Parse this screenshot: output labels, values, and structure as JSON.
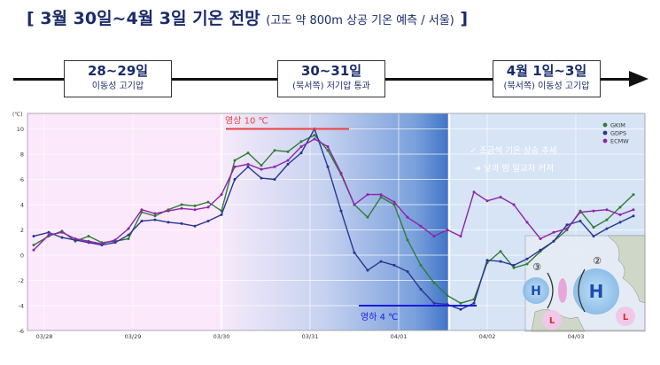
{
  "title": {
    "bracket_open": "[",
    "main": "3월 30일~4월 3일 기온 전망",
    "sub": "(고도 약 800m 상공 기온 예측 / 서울)",
    "bracket_close": "]"
  },
  "periods": [
    {
      "range": "28~29일",
      "desc": "이동성 고기압"
    },
    {
      "range": "30~31일",
      "desc": "(북서쪽) 저기압 통과"
    },
    {
      "range": "4월 1일~3일",
      "desc": "(북서쪽) 이동성 고기압"
    }
  ],
  "annotations": {
    "max_label": "영상 10 ℃",
    "min_label": "영하 4 ℃",
    "note1": "✓ 조금씩 기온 상승 추세",
    "note2": "➔ 낮과 밤 일교차 커져",
    "map_marks": [
      "③",
      "②",
      "H",
      "H",
      "L",
      "L"
    ]
  },
  "colors": {
    "GKIM": "#2e7d32",
    "GDPS": "#283593",
    "ECMW": "#8e24aa",
    "max_line": "#f04040",
    "min_line": "#1a1ae0"
  },
  "chart_data": {
    "type": "line",
    "ylabel": "(℃)",
    "ylim": [
      -6,
      11
    ],
    "yticks": [
      10,
      8,
      6,
      4,
      2,
      0,
      -2,
      -4,
      -6
    ],
    "xlim": [
      0,
      6.7
    ],
    "x_ticks": [
      {
        "x": 0,
        "label": "03/28"
      },
      {
        "x": 1,
        "label": "03/29"
      },
      {
        "x": 2,
        "label": "03/30"
      },
      {
        "x": 3,
        "label": "03/31"
      },
      {
        "x": 4,
        "label": "04/01"
      },
      {
        "x": 5,
        "label": "04/02"
      },
      {
        "x": 6,
        "label": "04/03"
      }
    ],
    "legend": [
      "GKIM",
      "GDPS",
      "ECMW"
    ],
    "legend_position": "top-right",
    "max_ref": 10,
    "min_ref": -4,
    "series": [
      {
        "name": "GKIM",
        "points": [
          [
            -0.12,
            0.8
          ],
          [
            0.05,
            1.5
          ],
          [
            0.2,
            1.9
          ],
          [
            0.35,
            1.1
          ],
          [
            0.5,
            1.5
          ],
          [
            0.65,
            1.0
          ],
          [
            0.8,
            1.1
          ],
          [
            0.95,
            1.3
          ],
          [
            1.1,
            3.4
          ],
          [
            1.25,
            3.1
          ],
          [
            1.4,
            3.6
          ],
          [
            1.55,
            4.0
          ],
          [
            1.7,
            3.9
          ],
          [
            1.85,
            4.2
          ],
          [
            2.0,
            3.5
          ],
          [
            2.15,
            7.5
          ],
          [
            2.3,
            8.1
          ],
          [
            2.45,
            7.1
          ],
          [
            2.6,
            8.3
          ],
          [
            2.75,
            8.2
          ],
          [
            2.9,
            9.0
          ],
          [
            3.05,
            9.5
          ],
          [
            3.2,
            8.3
          ],
          [
            3.35,
            6.4
          ],
          [
            3.5,
            4.0
          ],
          [
            3.65,
            3.0
          ],
          [
            3.8,
            4.6
          ],
          [
            3.95,
            4.0
          ],
          [
            4.1,
            1.2
          ],
          [
            4.25,
            -0.8
          ],
          [
            4.4,
            -2.2
          ],
          [
            4.55,
            -3.2
          ],
          [
            4.7,
            -3.8
          ],
          [
            4.85,
            -3.5
          ],
          [
            5.0,
            -0.6
          ],
          [
            5.15,
            0.3
          ],
          [
            5.3,
            -1.0
          ],
          [
            5.45,
            -0.7
          ],
          [
            5.6,
            0.3
          ],
          [
            5.75,
            1.1
          ],
          [
            5.9,
            2.0
          ],
          [
            6.05,
            3.5
          ],
          [
            6.2,
            2.2
          ],
          [
            6.35,
            2.8
          ],
          [
            6.5,
            3.8
          ],
          [
            6.65,
            4.8
          ]
        ]
      },
      {
        "name": "GDPS",
        "points": [
          [
            -0.12,
            1.5
          ],
          [
            0.05,
            1.8
          ],
          [
            0.2,
            1.4
          ],
          [
            0.35,
            1.2
          ],
          [
            0.5,
            1.0
          ],
          [
            0.65,
            0.8
          ],
          [
            0.8,
            1.0
          ],
          [
            0.95,
            1.6
          ],
          [
            1.1,
            2.7
          ],
          [
            1.25,
            2.8
          ],
          [
            1.4,
            2.6
          ],
          [
            1.55,
            2.5
          ],
          [
            1.7,
            2.3
          ],
          [
            1.85,
            2.7
          ],
          [
            2.0,
            3.2
          ],
          [
            2.15,
            6.0
          ],
          [
            2.3,
            7.0
          ],
          [
            2.45,
            6.1
          ],
          [
            2.6,
            6.0
          ],
          [
            2.75,
            7.2
          ],
          [
            2.9,
            8.1
          ],
          [
            3.05,
            10.0
          ],
          [
            3.2,
            7.0
          ],
          [
            3.35,
            3.5
          ],
          [
            3.5,
            0.2
          ],
          [
            3.65,
            -1.2
          ],
          [
            3.8,
            -0.5
          ],
          [
            3.95,
            -0.8
          ],
          [
            4.1,
            -1.3
          ],
          [
            4.25,
            -2.7
          ],
          [
            4.4,
            -3.8
          ],
          [
            4.55,
            -3.9
          ],
          [
            4.7,
            -4.3
          ],
          [
            4.85,
            -3.8
          ],
          [
            5.0,
            -0.4
          ],
          [
            5.15,
            -0.5
          ],
          [
            5.3,
            -0.8
          ],
          [
            5.45,
            -0.3
          ],
          [
            5.6,
            0.4
          ],
          [
            5.75,
            1.1
          ],
          [
            5.9,
            2.4
          ],
          [
            6.05,
            2.7
          ],
          [
            6.2,
            1.5
          ],
          [
            6.35,
            2.1
          ],
          [
            6.5,
            2.6
          ],
          [
            6.65,
            3.1
          ]
        ]
      },
      {
        "name": "ECMW",
        "points": [
          [
            -0.12,
            0.4
          ],
          [
            0.05,
            1.6
          ],
          [
            0.2,
            1.8
          ],
          [
            0.35,
            1.3
          ],
          [
            0.5,
            1.1
          ],
          [
            0.65,
            0.9
          ],
          [
            0.8,
            1.2
          ],
          [
            0.95,
            2.1
          ],
          [
            1.1,
            3.6
          ],
          [
            1.25,
            3.3
          ],
          [
            1.4,
            3.5
          ],
          [
            1.55,
            3.7
          ],
          [
            1.7,
            3.6
          ],
          [
            1.85,
            3.8
          ],
          [
            2.0,
            4.8
          ],
          [
            2.15,
            7.0
          ],
          [
            2.3,
            7.2
          ],
          [
            2.45,
            6.8
          ],
          [
            2.6,
            7.0
          ],
          [
            2.75,
            7.5
          ],
          [
            2.9,
            8.6
          ],
          [
            3.05,
            9.2
          ],
          [
            3.2,
            8.6
          ],
          [
            3.35,
            6.5
          ],
          [
            3.5,
            4.0
          ],
          [
            3.65,
            4.8
          ],
          [
            3.8,
            4.8
          ],
          [
            3.95,
            4.2
          ],
          [
            4.1,
            3.0
          ],
          [
            4.25,
            2.3
          ],
          [
            4.4,
            1.5
          ],
          [
            4.55,
            2.0
          ],
          [
            4.7,
            1.5
          ],
          [
            4.85,
            5.0
          ],
          [
            5.0,
            4.3
          ],
          [
            5.15,
            4.6
          ],
          [
            5.3,
            4.0
          ],
          [
            5.45,
            2.6
          ],
          [
            5.6,
            1.3
          ],
          [
            5.75,
            1.8
          ],
          [
            5.9,
            2.1
          ],
          [
            6.05,
            3.4
          ],
          [
            6.2,
            3.5
          ],
          [
            6.35,
            3.6
          ],
          [
            6.5,
            3.2
          ],
          [
            6.65,
            3.6
          ]
        ]
      }
    ]
  }
}
